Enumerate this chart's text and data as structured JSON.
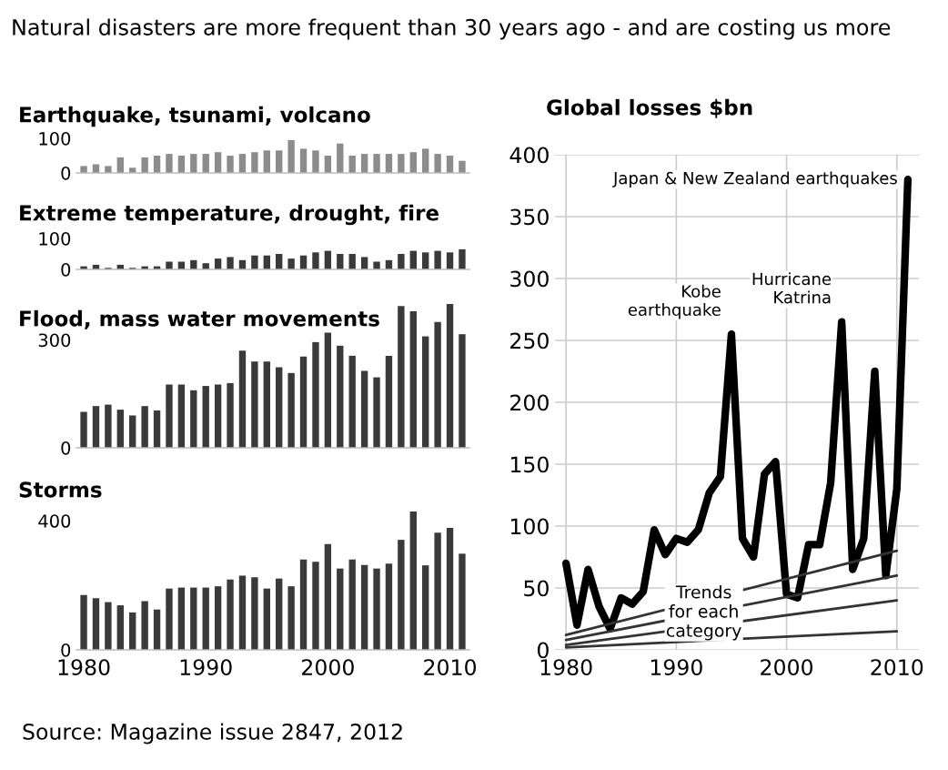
{
  "chart_data": [
    {
      "type": "other",
      "title": "Natural disasters are more frequent than 30 years ago - and are costing us more",
      "annotations": [
        "Source: Magazine issue 2847, 2012"
      ]
    },
    {
      "type": "bar",
      "title": "Earthquake, tsunami, volcano",
      "x": [
        1980,
        1981,
        1982,
        1983,
        1984,
        1985,
        1986,
        1987,
        1988,
        1989,
        1990,
        1991,
        1992,
        1993,
        1994,
        1995,
        1996,
        1997,
        1998,
        1999,
        2000,
        2001,
        2002,
        2003,
        2004,
        2005,
        2006,
        2007,
        2008,
        2009,
        2010,
        2011
      ],
      "values": [
        20,
        25,
        20,
        45,
        15,
        45,
        50,
        55,
        50,
        55,
        55,
        60,
        50,
        55,
        60,
        65,
        65,
        95,
        70,
        65,
        50,
        85,
        50,
        55,
        55,
        55,
        55,
        60,
        70,
        55,
        50,
        35
      ],
      "color": "#8c8c8c",
      "xlim": [
        1979.4,
        2011.6
      ],
      "ylim": [
        0,
        100
      ],
      "yticks": [
        0,
        100
      ],
      "tick_labels": "y"
    },
    {
      "type": "bar",
      "title": "Extreme temperature, drought, fire",
      "x": [
        1980,
        1981,
        1982,
        1983,
        1984,
        1985,
        1986,
        1987,
        1988,
        1989,
        1990,
        1991,
        1992,
        1993,
        1994,
        1995,
        1996,
        1997,
        1998,
        1999,
        2000,
        2001,
        2002,
        2003,
        2004,
        2005,
        2006,
        2007,
        2008,
        2009,
        2010,
        2011
      ],
      "values": [
        10,
        15,
        5,
        15,
        5,
        10,
        10,
        25,
        25,
        30,
        20,
        35,
        40,
        30,
        45,
        45,
        50,
        35,
        45,
        55,
        60,
        50,
        50,
        40,
        25,
        30,
        50,
        60,
        55,
        60,
        55,
        65
      ],
      "color": "#3a3a3a",
      "xlim": [
        1979.4,
        2011.6
      ],
      "ylim": [
        0,
        100
      ],
      "yticks": [
        0,
        100
      ],
      "tick_labels": "y"
    },
    {
      "type": "bar",
      "title": "Flood, mass water movements",
      "x": [
        1980,
        1981,
        1982,
        1983,
        1984,
        1985,
        1986,
        1987,
        1988,
        1989,
        1990,
        1991,
        1992,
        1993,
        1994,
        1995,
        1996,
        1997,
        1998,
        1999,
        2000,
        2001,
        2002,
        2003,
        2004,
        2005,
        2006,
        2007,
        2008,
        2009,
        2010,
        2011
      ],
      "values": [
        100,
        116,
        120,
        106,
        90,
        116,
        104,
        176,
        176,
        160,
        172,
        176,
        180,
        270,
        240,
        240,
        224,
        208,
        254,
        294,
        320,
        284,
        256,
        214,
        196,
        256,
        394,
        380,
        310,
        350,
        400,
        316
      ],
      "color": "#3a3a3a",
      "xlim": [
        1979.4,
        2011.6
      ],
      "ylim": [
        0,
        400
      ],
      "yticks": [
        0,
        300
      ],
      "tick_labels": "y"
    },
    {
      "type": "bar",
      "title": "Storms",
      "x": [
        1980,
        1981,
        1982,
        1983,
        1984,
        1985,
        1986,
        1987,
        1988,
        1989,
        1990,
        1991,
        1992,
        1993,
        1994,
        1995,
        1996,
        1997,
        1998,
        1999,
        2000,
        2001,
        2002,
        2003,
        2004,
        2005,
        2006,
        2007,
        2008,
        2009,
        2010,
        2011
      ],
      "values": [
        170,
        160,
        148,
        138,
        116,
        151,
        125,
        190,
        193,
        193,
        193,
        197,
        218,
        230,
        225,
        190,
        221,
        197,
        280,
        273,
        328,
        252,
        280,
        263,
        252,
        267,
        341,
        429,
        262,
        363,
        378,
        298
      ],
      "color": "#3a3a3a",
      "xlim": [
        1979.4,
        2011.6
      ],
      "ylim": [
        0,
        440
      ],
      "yticks": [
        0,
        400
      ],
      "xticks": [
        1980,
        1990,
        2000,
        2010
      ]
    },
    {
      "type": "line",
      "title": "Global losses $bn",
      "grid": true,
      "series": [
        {
          "x": [
            1980,
            1981,
            1982,
            1983,
            1984,
            1985,
            1986,
            1987,
            1988,
            1989,
            1990,
            1991,
            1992,
            1993,
            1994,
            1995,
            1996,
            1997,
            1998,
            1999,
            2000,
            2001,
            2002,
            2003,
            2004,
            2005,
            2006,
            2007,
            2008,
            2009,
            2010,
            2011
          ],
          "values": [
            70,
            20,
            65,
            35,
            17,
            42,
            37,
            47,
            97,
            77,
            90,
            87,
            97,
            127,
            140,
            255,
            90,
            75,
            142,
            152,
            45,
            42,
            85,
            85,
            135,
            265,
            65,
            90,
            225,
            60,
            130,
            380
          ],
          "color": "#000000"
        },
        {
          "x": [
            1980,
            2010
          ],
          "values": [
            12,
            80
          ],
          "color": "#333333"
        },
        {
          "x": [
            1980,
            2010
          ],
          "values": [
            8,
            60
          ],
          "color": "#333333"
        },
        {
          "x": [
            1980,
            2010
          ],
          "values": [
            4,
            40
          ],
          "color": "#333333"
        },
        {
          "x": [
            1980,
            2010
          ],
          "values": [
            2,
            15
          ],
          "color": "#333333"
        }
      ],
      "xlim": [
        1979,
        2012
      ],
      "xticks": [
        1980,
        1990,
        2000,
        2010
      ],
      "ylim": [
        0,
        400
      ],
      "yticks": [
        0,
        50,
        100,
        150,
        200,
        250,
        300,
        350,
        400
      ],
      "annotations": [
        {
          "text": "Japan & New Zealand earthquakes",
          "x": 2011,
          "y": 380
        },
        {
          "text": "Kobe\nearthquake",
          "x": 1995,
          "y": 255
        },
        {
          "text": "Hurricane\nKatrina",
          "x": 2005,
          "y": 265
        },
        "Trends\nfor each\ncategory"
      ]
    }
  ]
}
